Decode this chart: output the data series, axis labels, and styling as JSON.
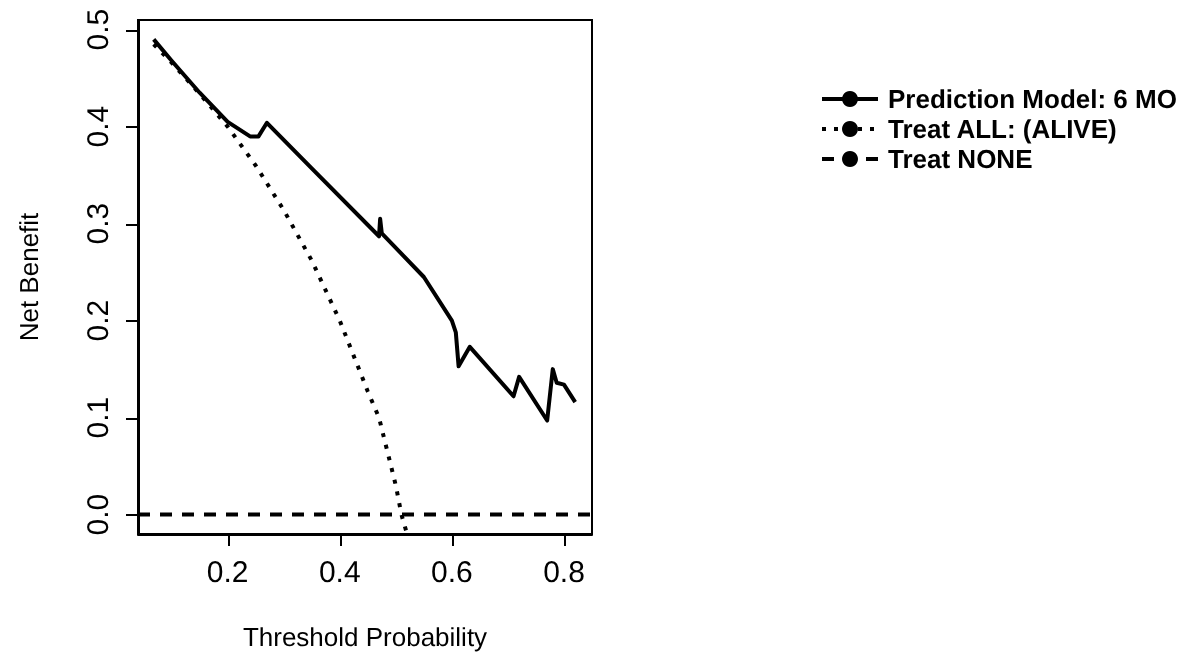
{
  "chart_data": {
    "type": "line",
    "xlabel": "Threshold Probability",
    "ylabel": "Net Benefit",
    "xlim": [
      0.04,
      0.85
    ],
    "ylim": [
      -0.02,
      0.51
    ],
    "xticks": [
      0.2,
      0.4,
      0.6,
      0.8
    ],
    "yticks": [
      {
        "value": 0,
        "label": "0.0"
      },
      0.1,
      0.2,
      0.3,
      0.4,
      0.5
    ],
    "grid": false,
    "legend": "top right",
    "marker": "none",
    "series": [
      {
        "name": "Prediction Model: 6 MO",
        "color": "#000000",
        "line_style": "solid",
        "x": [
          0.068,
          0.1,
          0.15,
          0.2,
          0.24,
          0.255,
          0.27,
          0.35,
          0.47,
          0.472,
          0.475,
          0.55,
          0.6,
          0.607,
          0.612,
          0.632,
          0.71,
          0.72,
          0.77,
          0.78,
          0.787,
          0.8,
          0.82
        ],
        "values": [
          0.49,
          0.468,
          0.435,
          0.405,
          0.39,
          0.39,
          0.404,
          0.357,
          0.287,
          0.305,
          0.29,
          0.245,
          0.2,
          0.188,
          0.153,
          0.173,
          0.122,
          0.142,
          0.097,
          0.15,
          0.136,
          0.134,
          0.116
        ]
      },
      {
        "name": "Treat ALL: (ALIVE)",
        "color": "#000000",
        "line_style": "dotted",
        "x": [
          0.068,
          0.1,
          0.15,
          0.2,
          0.25,
          0.3,
          0.35,
          0.4,
          0.45,
          0.47,
          0.5,
          0.51,
          0.52
        ],
        "values": [
          0.485,
          0.466,
          0.434,
          0.4,
          0.36,
          0.314,
          0.262,
          0.2,
          0.127,
          0.1,
          0.03,
          0.0,
          -0.02
        ]
      },
      {
        "name": "Treat NONE",
        "color": "#000000",
        "line_style": "dashed",
        "x": [
          0.04,
          0.85
        ],
        "values": [
          0,
          0
        ]
      }
    ]
  }
}
